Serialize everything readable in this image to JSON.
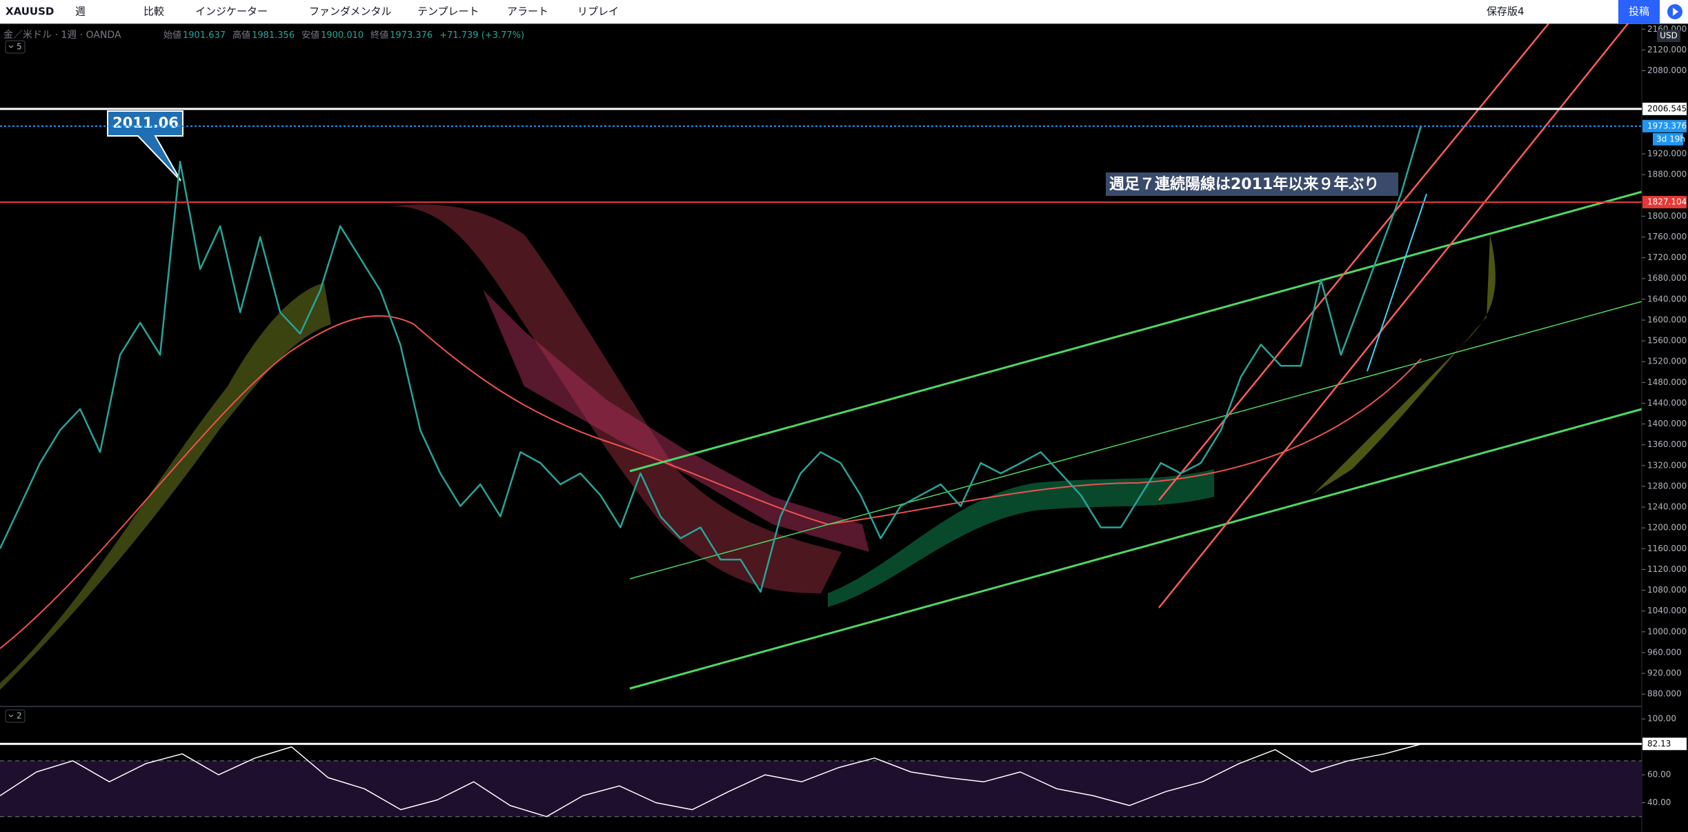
{
  "toolbar": {
    "symbol": "XAUUSD",
    "interval": "週",
    "items": [
      "比較",
      "インジケーター",
      "ファンダメンタル",
      "テンプレート",
      "アラート",
      "リプレイ"
    ],
    "layout": "保存版4",
    "publish": "投稿"
  },
  "legend": {
    "title": "金／米ドル · 1週 · OANDA",
    "fields": [
      {
        "label": "始値",
        "value": "1901.637"
      },
      {
        "label": "高値",
        "value": "1981.356"
      },
      {
        "label": "安値",
        "value": "1900.010"
      },
      {
        "label": "終値",
        "value": "1973.376"
      }
    ],
    "change": "+71.739 (+3.77%)"
  },
  "chart_data": [
    {
      "type": "line",
      "pane_label": "5",
      "currency": "USD",
      "color": "#26a69a",
      "values": [
        1160,
        1242,
        1325,
        1388,
        1429,
        1346,
        1533,
        1595,
        1533,
        1905,
        1698,
        1781,
        1615,
        1760,
        1615,
        1574,
        1657,
        1781,
        1719,
        1657,
        1553,
        1388,
        1305,
        1242,
        1284,
        1222,
        1346,
        1325,
        1284,
        1305,
        1263,
        1201,
        1305,
        1222,
        1180,
        1201,
        1139,
        1139,
        1077,
        1222,
        1305,
        1346,
        1325,
        1263,
        1180,
        1242,
        1263,
        1284,
        1242,
        1325,
        1305,
        1325,
        1346,
        1305,
        1263,
        1201,
        1201,
        1263,
        1325,
        1305,
        1325,
        1388,
        1491,
        1553,
        1512,
        1512,
        1678,
        1533,
        1636,
        1740,
        1843,
        1974
      ],
      "ylim": [
        859,
        2171
      ],
      "yticks": [
        {
          "value": 880,
          "label": "880.000"
        },
        {
          "value": 920,
          "label": "920.000"
        },
        {
          "value": 960,
          "label": "960.000"
        },
        {
          "value": 1000,
          "label": "1000.000"
        },
        {
          "value": 1040,
          "label": "1040.000"
        },
        {
          "value": 1080,
          "label": "1080.000"
        },
        {
          "value": 1120,
          "label": "1120.000"
        },
        {
          "value": 1160,
          "label": "1160.000"
        },
        {
          "value": 1200,
          "label": "1200.000"
        },
        {
          "value": 1240,
          "label": "1240.000"
        },
        {
          "value": 1280,
          "label": "1280.000"
        },
        {
          "value": 1320,
          "label": "1320.000"
        },
        {
          "value": 1360,
          "label": "1360.000"
        },
        {
          "value": 1400,
          "label": "1400.000"
        },
        {
          "value": 1440,
          "label": "1440.000"
        },
        {
          "value": 1480,
          "label": "1480.000"
        },
        {
          "value": 1520,
          "label": "1520.000"
        },
        {
          "value": 1560,
          "label": "1560.000"
        },
        {
          "value": 1600,
          "label": "1600.000"
        },
        {
          "value": 1640,
          "label": "1640.000"
        },
        {
          "value": 1680,
          "label": "1680.000"
        },
        {
          "value": 1720,
          "label": "1720.000"
        },
        {
          "value": 1760,
          "label": "1760.000"
        },
        {
          "value": 1800,
          "label": "1800.000"
        },
        {
          "value": 1880,
          "label": "1880.000"
        },
        {
          "value": 1920,
          "label": "1920.000"
        },
        {
          "value": 2080,
          "label": "2080.000"
        },
        {
          "value": 2120,
          "label": "2120.000"
        },
        {
          "value": 2160,
          "label": "2160.000"
        }
      ],
      "markers": [
        {
          "value": 2006.545,
          "label": "2006.545",
          "color": "#ffffff"
        },
        {
          "value": 1973.376,
          "label": "1973.376",
          "color": "#2196f3"
        },
        {
          "value": 1827.104,
          "label": "1827.104",
          "color": "#e53935"
        }
      ],
      "countdown": "3d 19h",
      "annotations": [
        "2011.06",
        "週足７連続陽線は2011年以来９年ぶり"
      ]
    },
    {
      "type": "line",
      "pane_label": "2",
      "color": "#ffffff",
      "values": [
        45,
        62,
        70,
        55,
        68,
        75,
        60,
        72,
        80,
        58,
        50,
        35,
        42,
        55,
        38,
        30,
        45,
        52,
        40,
        35,
        48,
        60,
        55,
        65,
        72,
        62,
        58,
        55,
        62,
        50,
        45,
        38,
        48,
        55,
        68,
        78,
        62,
        70,
        75,
        82
      ],
      "ylim": [
        19,
        106
      ],
      "yticks": [
        {
          "value": 40,
          "label": "40.00"
        },
        {
          "value": 60,
          "label": "60.00"
        },
        {
          "value": 100,
          "label": "100.00"
        }
      ],
      "levels": [
        70,
        30
      ],
      "markers": [
        {
          "value": 82.13,
          "label": "82.13",
          "color": "#ffffff"
        }
      ]
    }
  ]
}
